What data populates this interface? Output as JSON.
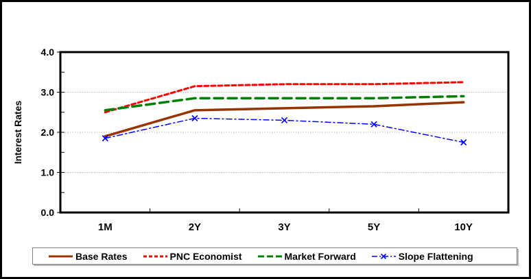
{
  "chart_data": {
    "type": "line",
    "title": "",
    "xlabel": "",
    "ylabel": "Interest Rates",
    "categories": [
      "1M",
      "2Y",
      "3Y",
      "5Y",
      "10Y"
    ],
    "series": [
      {
        "name": "Base Rates",
        "color": "#993300",
        "dash": "solid",
        "line_width": 3.5,
        "marker": "none",
        "values": [
          1.9,
          2.55,
          2.6,
          2.65,
          2.75
        ]
      },
      {
        "name": "PNC Economist",
        "color": "#FF0000",
        "dash": "dash",
        "line_width": 3,
        "marker": "none",
        "values": [
          2.5,
          3.15,
          3.2,
          3.2,
          3.25
        ]
      },
      {
        "name": "Market Forward",
        "color": "#008000",
        "dash": "long-dash",
        "line_width": 3.5,
        "marker": "none",
        "values": [
          2.55,
          2.85,
          2.85,
          2.85,
          2.9
        ]
      },
      {
        "name": "Slope Flattening",
        "color": "#0000FF",
        "dash": "dash-dot",
        "line_width": 1.5,
        "marker": "x",
        "values": [
          1.85,
          2.35,
          2.3,
          2.2,
          1.75
        ]
      }
    ],
    "ylim": [
      0.0,
      4.0
    ],
    "ytick_labels": [
      "0.0",
      "1.0",
      "2.0",
      "3.0",
      "4.0"
    ],
    "ytick_values": [
      0,
      1,
      2,
      3,
      4
    ],
    "yminor_step": 0.5,
    "grid": "horizontal-dotted",
    "legend_position": "bottom"
  },
  "colors": {
    "grid": "#b7b7b7",
    "axis": "#000000",
    "plot_background": "#FFFFFF",
    "frame_border": "#000000",
    "legend_border": "#7f7f7f"
  }
}
